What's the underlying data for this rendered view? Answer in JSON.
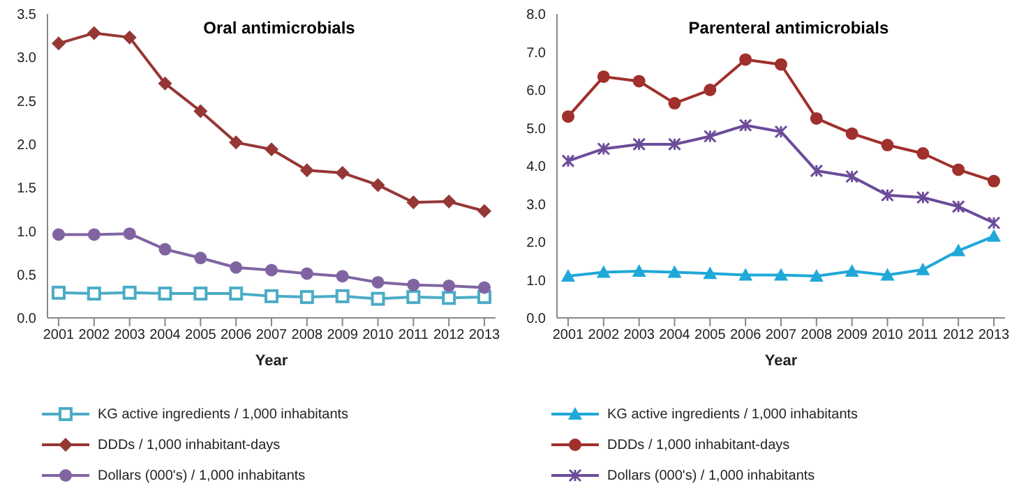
{
  "chart_data": [
    {
      "type": "line",
      "title": "Oral antimicrobials",
      "xlabel": "Year",
      "categories": [
        "2001",
        "2002",
        "2003",
        "2004",
        "2005",
        "2006",
        "2007",
        "2008",
        "2009",
        "2010",
        "2011",
        "2012",
        "2013"
      ],
      "ylim": [
        0,
        3.5
      ],
      "yticks": [
        {
          "value": 0,
          "label": "0.0"
        },
        {
          "value": 0.5,
          "label": "0.5"
        },
        {
          "value": 1,
          "label": "1.0"
        },
        {
          "value": 1.5,
          "label": "1.5"
        },
        {
          "value": 2,
          "label": "2.0"
        },
        {
          "value": 2.5,
          "label": "2.5"
        },
        {
          "value": 3,
          "label": "3.0"
        },
        {
          "value": 3.5,
          "label": "3.5"
        }
      ],
      "grid": false,
      "legend": "bottom",
      "series": [
        {
          "name": "KG active ingredients / 1,000 inhabitants",
          "color": "#4bacc6",
          "marker": "square",
          "values": [
            0.29,
            0.28,
            0.29,
            0.28,
            0.28,
            0.28,
            0.25,
            0.24,
            0.25,
            0.22,
            0.24,
            0.23,
            0.24
          ]
        },
        {
          "name": "DDDs / 1,000 inhabitant-days",
          "color": "#953735",
          "marker": "diamond",
          "values": [
            3.16,
            3.28,
            3.23,
            2.7,
            2.38,
            2.02,
            1.94,
            1.7,
            1.67,
            1.53,
            1.33,
            1.34,
            1.23
          ]
        },
        {
          "name": "Dollars (000's) / 1,000 inhabitants",
          "color": "#8064a2",
          "marker": "circle",
          "values": [
            0.96,
            0.96,
            0.97,
            0.79,
            0.69,
            0.58,
            0.55,
            0.51,
            0.48,
            0.41,
            0.38,
            0.37,
            0.35
          ]
        }
      ]
    },
    {
      "type": "line",
      "title": "Parenteral antimicrobials",
      "xlabel": "Year",
      "categories": [
        "2001",
        "2002",
        "2003",
        "2004",
        "2005",
        "2006",
        "2007",
        "2008",
        "2009",
        "2010",
        "2011",
        "2012",
        "2013"
      ],
      "ylim": [
        0,
        8
      ],
      "yticks": [
        {
          "value": 0,
          "label": "0.0"
        },
        {
          "value": 1,
          "label": "1.0"
        },
        {
          "value": 2,
          "label": "2.0"
        },
        {
          "value": 3,
          "label": "3.0"
        },
        {
          "value": 4,
          "label": "4.0"
        },
        {
          "value": 5,
          "label": "5.0"
        },
        {
          "value": 6,
          "label": "6.0"
        },
        {
          "value": 7,
          "label": "7.0"
        },
        {
          "value": 8,
          "label": "8.0"
        }
      ],
      "grid": false,
      "legend": "bottom",
      "series": [
        {
          "name": "KG active ingredients / 1,000 inhabitants",
          "color": "#1fa8d8",
          "marker": "triangle",
          "values": [
            1.1,
            1.2,
            1.23,
            1.2,
            1.17,
            1.13,
            1.13,
            1.1,
            1.23,
            1.13,
            1.27,
            1.77,
            2.15
          ]
        },
        {
          "name": "DDDs / 1,000 inhabitant-days",
          "color": "#a0302c",
          "marker": "circle",
          "values": [
            5.3,
            6.35,
            6.23,
            5.65,
            6.0,
            6.8,
            6.67,
            5.25,
            4.85,
            4.55,
            4.33,
            3.9,
            3.6
          ]
        },
        {
          "name": "Dollars (000's) / 1,000 inhabitants",
          "color": "#6b4c9a",
          "marker": "cross",
          "values": [
            4.13,
            4.45,
            4.57,
            4.57,
            4.78,
            5.07,
            4.9,
            3.87,
            3.72,
            3.23,
            3.17,
            2.93,
            2.5
          ]
        }
      ]
    }
  ]
}
